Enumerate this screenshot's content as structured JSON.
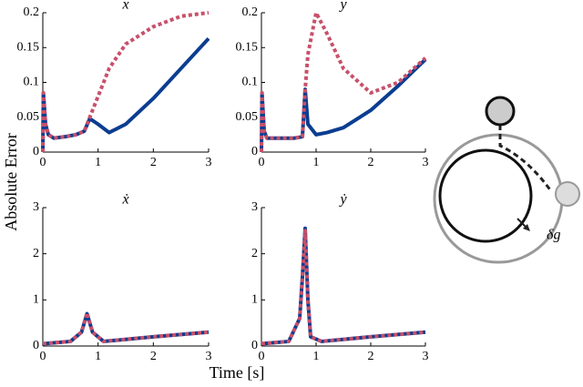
{
  "ylabel": "Absolute Error",
  "xlabel": "Time [s]",
  "diagram": {
    "label": "δg"
  },
  "chart_data": [
    {
      "type": "line",
      "title": "x",
      "xlim": [
        0,
        3
      ],
      "xticks": [
        0,
        1,
        2,
        3
      ],
      "ylim": [
        0,
        0.2
      ],
      "yticks": [
        0,
        0.05,
        0.1,
        0.15,
        0.2
      ],
      "x": [
        0,
        0.01,
        0.05,
        0.1,
        0.2,
        0.4,
        0.6,
        0.75,
        0.85,
        1.0,
        1.2,
        1.5,
        2.0,
        2.5,
        3.0
      ],
      "series": [
        {
          "color": "#0b3d91",
          "style": "solid",
          "values": [
            0,
            0.085,
            0.04,
            0.025,
            0.02,
            0.022,
            0.025,
            0.03,
            0.048,
            0.04,
            0.028,
            0.04,
            0.077,
            0.12,
            0.163
          ]
        },
        {
          "color": "#c8506a",
          "style": "dashed",
          "values": [
            0,
            0.085,
            0.04,
            0.025,
            0.02,
            0.022,
            0.025,
            0.03,
            0.05,
            0.08,
            0.12,
            0.155,
            0.18,
            0.195,
            0.2
          ]
        }
      ]
    },
    {
      "type": "line",
      "title": "y",
      "xlim": [
        0,
        3
      ],
      "xticks": [
        0,
        1,
        2,
        3
      ],
      "ylim": [
        0,
        0.2
      ],
      "yticks": [
        0,
        0.05,
        0.1,
        0.15,
        0.2
      ],
      "x": [
        0,
        0.01,
        0.05,
        0.1,
        0.2,
        0.4,
        0.6,
        0.75,
        0.8,
        0.85,
        1.0,
        1.2,
        1.5,
        2.0,
        2.5,
        3.0
      ],
      "series": [
        {
          "color": "#0b3d91",
          "style": "solid",
          "values": [
            0,
            0.085,
            0.03,
            0.02,
            0.02,
            0.02,
            0.02,
            0.022,
            0.09,
            0.04,
            0.025,
            0.028,
            0.035,
            0.06,
            0.095,
            0.133
          ]
        },
        {
          "color": "#c8506a",
          "style": "dashed",
          "values": [
            0,
            0.085,
            0.03,
            0.02,
            0.02,
            0.02,
            0.02,
            0.022,
            0.09,
            0.14,
            0.2,
            0.17,
            0.12,
            0.085,
            0.1,
            0.135
          ]
        }
      ]
    },
    {
      "type": "line",
      "title": "ẋ",
      "xlim": [
        0,
        3
      ],
      "xticks": [
        0,
        1,
        2,
        3
      ],
      "ylim": [
        0,
        3
      ],
      "yticks": [
        0,
        1,
        2,
        3
      ],
      "x": [
        0,
        0.5,
        0.7,
        0.8,
        0.9,
        1.1,
        2,
        3
      ],
      "series": [
        {
          "color": "#0b3d91",
          "style": "solid",
          "values": [
            0.05,
            0.1,
            0.3,
            0.7,
            0.3,
            0.1,
            0.2,
            0.3
          ]
        },
        {
          "color": "#c8506a",
          "style": "dashed",
          "values": [
            0.05,
            0.1,
            0.3,
            0.72,
            0.3,
            0.1,
            0.2,
            0.3
          ]
        }
      ]
    },
    {
      "type": "line",
      "title": "ẏ",
      "xlim": [
        0,
        3
      ],
      "xticks": [
        0,
        1,
        2,
        3
      ],
      "ylim": [
        0,
        3
      ],
      "yticks": [
        0,
        1,
        2,
        3
      ],
      "x": [
        0,
        0.5,
        0.7,
        0.75,
        0.8,
        0.85,
        0.9,
        1.1,
        2,
        3
      ],
      "series": [
        {
          "color": "#0b3d91",
          "style": "solid",
          "values": [
            0.05,
            0.1,
            0.6,
            1.5,
            2.55,
            1.0,
            0.2,
            0.1,
            0.2,
            0.3
          ]
        },
        {
          "color": "#c8506a",
          "style": "dashed",
          "values": [
            0.05,
            0.1,
            0.6,
            1.5,
            2.5,
            1.0,
            0.2,
            0.1,
            0.2,
            0.3
          ]
        }
      ]
    }
  ]
}
